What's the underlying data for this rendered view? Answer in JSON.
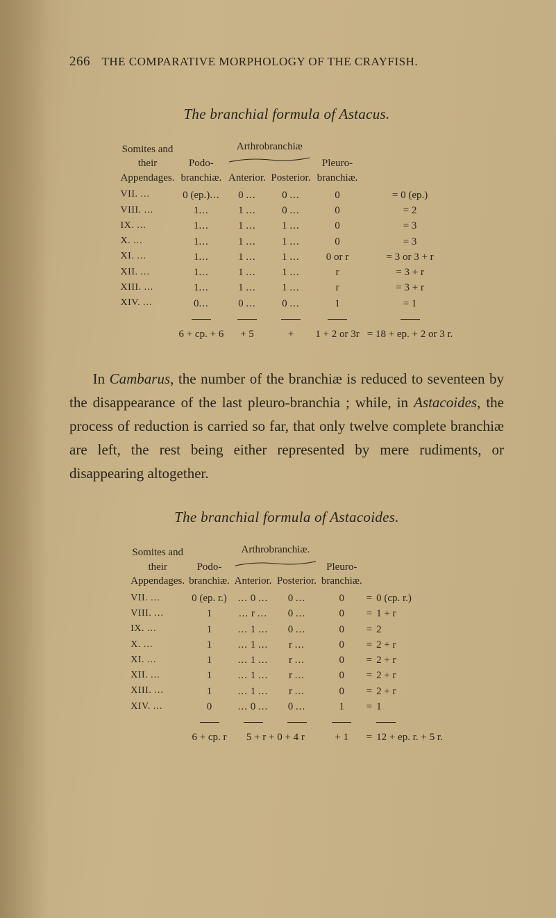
{
  "page": {
    "number": "266",
    "running_head": "THE COMPARATIVE MORPHOLOGY OF THE CRAYFISH."
  },
  "section1": {
    "caption": "The branchial formula of Astacus.",
    "col_heads": {
      "somites": "Somites and\ntheir\nAppendages.",
      "podo": "Podo-\nbranchiæ.",
      "arthro_group": "Arthrobranchiæ",
      "anterior": "Anterior.",
      "posterior": "Posterior.",
      "pleuro": "Pleuro-\nbranchiæ."
    },
    "rows": [
      {
        "som": "VII.",
        "podo": "0 (ep.)",
        "ant": "0",
        "post": "0",
        "pleuro": "0",
        "eq": "= 0 (ep.)"
      },
      {
        "som": "VIII.",
        "podo": "1",
        "ant": "1",
        "post": "0",
        "pleuro": "0",
        "eq": "= 2"
      },
      {
        "som": "IX.",
        "podo": "1",
        "ant": "1",
        "post": "1",
        "pleuro": "0",
        "eq": "= 3"
      },
      {
        "som": "X.",
        "podo": "1",
        "ant": "1",
        "post": "1",
        "pleuro": "0",
        "eq": "= 3"
      },
      {
        "som": "XI.",
        "podo": "1",
        "ant": "1",
        "post": "1",
        "pleuro": "0 or r",
        "eq": "= 3 or 3 + r"
      },
      {
        "som": "XII.",
        "podo": "1",
        "ant": "1",
        "post": "1",
        "pleuro": "r",
        "eq": "= 3 + r"
      },
      {
        "som": "XIII.",
        "podo": "1",
        "ant": "1",
        "post": "1",
        "pleuro": "r",
        "eq": "= 3 + r"
      },
      {
        "som": "XIV.",
        "podo": "0",
        "ant": "0",
        "post": "0",
        "pleuro": "1",
        "eq": "= 1"
      }
    ],
    "totals": {
      "podo": "6 + cp. + 6",
      "ant": "+ 5",
      "post": "+",
      "pleuro": "1 + 2 or 3r",
      "eq": "= 18 + ep. + 2 or 3 r."
    }
  },
  "paragraph1": "In Cambarus, the number of the branchiæ is reduced to seventeen by the disappearance of the last pleuro-branchia ; while, in Astacoides, the process of reduction is carried so far, that only twelve complete branchiæ are left, the rest being either represented by mere rudiments, or disappearing altogether.",
  "paragraph1_plain_before_c": "In ",
  "paragraph1_c": "Cambarus",
  "paragraph1_mid": ", the number of the branchiæ is reduced to seventeen by the disappearance of the last pleuro-branchia ; while, in ",
  "paragraph1_a": "Astacoides",
  "paragraph1_after": ", the process of reduction is carried so far, that only twelve complete branchiæ are left, the rest being either represented by mere rudiments, or disappearing altogether.",
  "section2": {
    "caption": "The branchial formula of Astacoides.",
    "col_heads": {
      "somites": "Somites and\ntheir\nAppendages.",
      "podo": "Podo-\nbranchiæ.",
      "arthro_group": "Arthrobranchiæ.",
      "anterior": "Anterior.",
      "posterior": "Posterior.",
      "pleuro": "Pleuro-\nbranchiæ."
    },
    "rows": [
      {
        "som": "VII.",
        "podo": "0 (ep. r.)",
        "ant": "0",
        "post": "0",
        "pleuro": "0",
        "eq2": "=",
        "rhs": "0 (cp. r.)"
      },
      {
        "som": "VIII.",
        "podo": "1",
        "ant": "r",
        "post": "0",
        "pleuro": "0",
        "eq2": "=",
        "rhs": "1 + r"
      },
      {
        "som": "IX.",
        "podo": "1",
        "ant": "1",
        "post": "0",
        "pleuro": "0",
        "eq2": "=",
        "rhs": "2"
      },
      {
        "som": "X.",
        "podo": "1",
        "ant": "1",
        "post": "r",
        "pleuro": "0",
        "eq2": "=",
        "rhs": "2 + r"
      },
      {
        "som": "XI.",
        "podo": "1",
        "ant": "1",
        "post": "r",
        "pleuro": "0",
        "eq2": "=",
        "rhs": "2 + r"
      },
      {
        "som": "XII.",
        "podo": "1",
        "ant": "1",
        "post": "r",
        "pleuro": "0",
        "eq2": "=",
        "rhs": "2 + r"
      },
      {
        "som": "XIII.",
        "podo": "1",
        "ant": "1",
        "post": "r",
        "pleuro": "0",
        "eq2": "=",
        "rhs": "2 + r"
      },
      {
        "som": "XIV.",
        "podo": "0",
        "ant": "0",
        "post": "0",
        "pleuro": "1",
        "eq2": "=",
        "rhs": "1"
      }
    ],
    "totals": {
      "podo": "6 + cp. r",
      "antpost": "5 + r + 0 + 4 r",
      "pleuro": "+ 1",
      "eq2": "=",
      "rhs": "12 + ep. r. + 5 r."
    }
  },
  "style": {
    "bg": "#c7b186",
    "ink": "#2a2418",
    "fontsize_body": 21,
    "fontsize_table": 15
  }
}
